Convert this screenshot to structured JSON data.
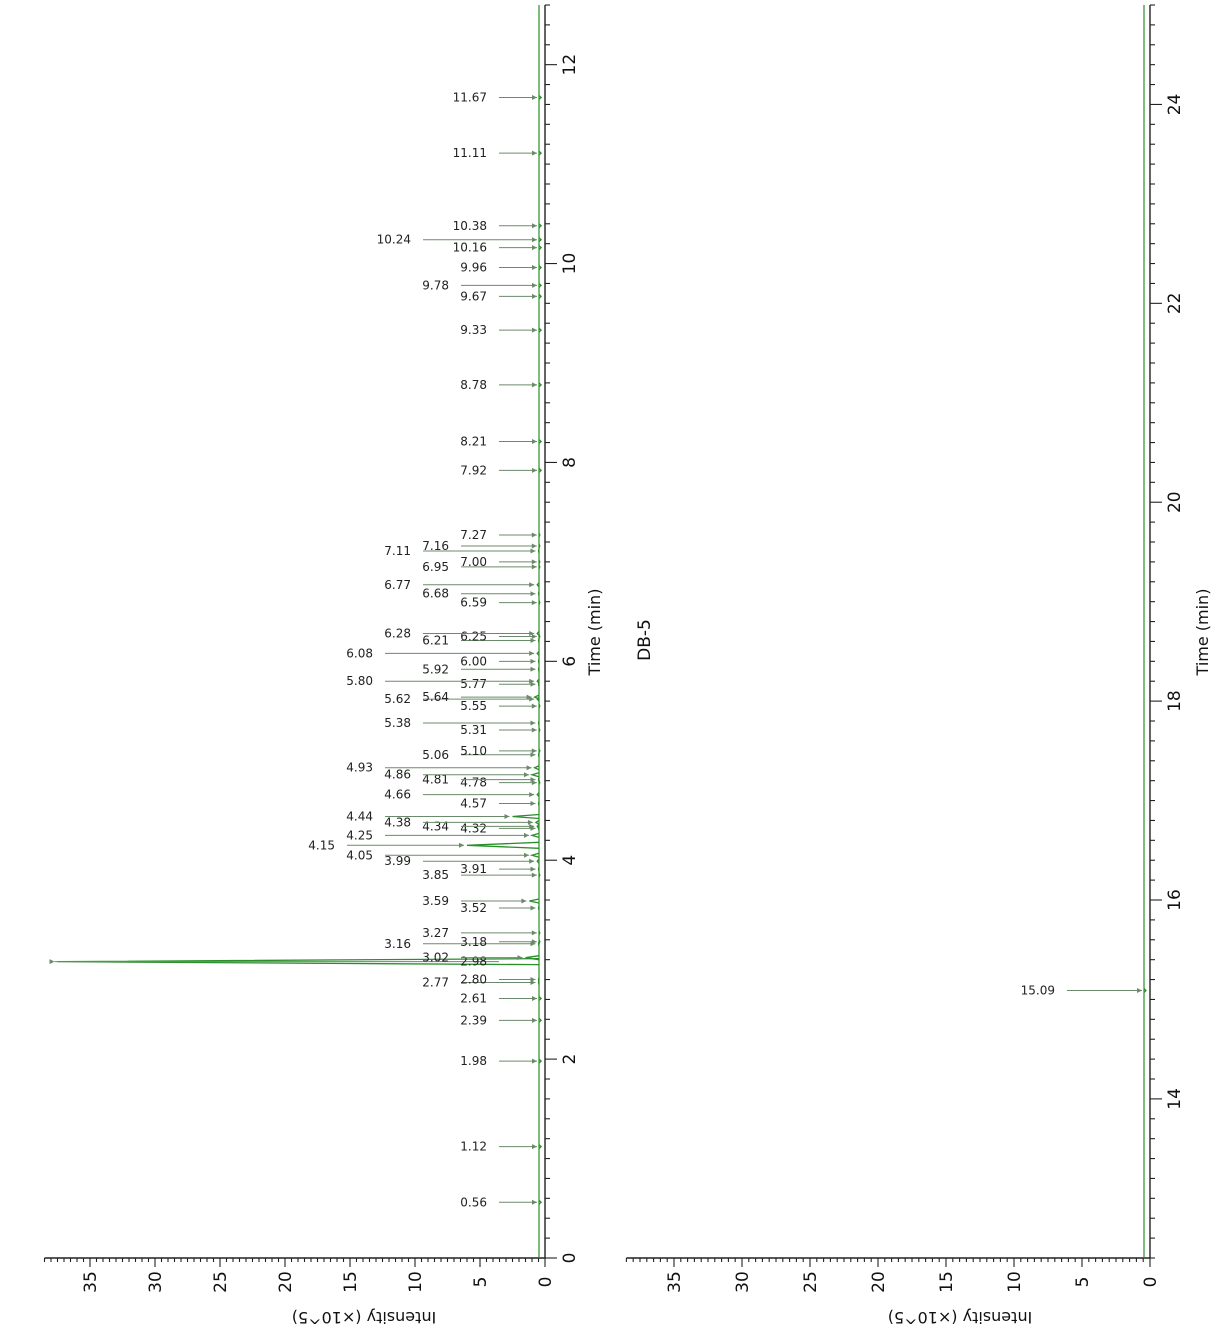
{
  "title": "DB-5",
  "colors": {
    "trace": "#2a8f2a",
    "arrow": "#6b8a6b",
    "axis": "#222222"
  },
  "chart_data": [
    {
      "type": "line",
      "name": "panel-1",
      "xlabel": "Time (min)",
      "ylabel": "Intensity (×10^5)",
      "xlim": [
        0,
        12.6
      ],
      "ylim": [
        0,
        38.5
      ],
      "x_ticks": [
        "0",
        "2",
        "4",
        "6",
        "8",
        "10",
        "12"
      ],
      "y_ticks": [
        "0",
        "5",
        "10",
        "15",
        "20",
        "25",
        "30",
        "35"
      ],
      "peaks": [
        {
          "rt": "0.56",
          "x": 0.56,
          "h": 0.3,
          "level": 0
        },
        {
          "rt": "1.12",
          "x": 1.12,
          "h": 0.3,
          "level": 0
        },
        {
          "rt": "1.98",
          "x": 1.98,
          "h": 0.3,
          "level": 0
        },
        {
          "rt": "2.39",
          "x": 2.39,
          "h": 0.3,
          "level": 0
        },
        {
          "rt": "2.61",
          "x": 2.61,
          "h": 0.3,
          "level": 0
        },
        {
          "rt": "2.77",
          "x": 2.77,
          "h": 0.5,
          "level": 1
        },
        {
          "rt": "2.80",
          "x": 2.8,
          "h": 0.5,
          "level": 0
        },
        {
          "rt": "2.98",
          "x": 2.98,
          "h": 37.5,
          "level": 0
        },
        {
          "rt": "3.02",
          "x": 3.02,
          "h": 1.5,
          "level": 1
        },
        {
          "rt": "3.16",
          "x": 3.16,
          "h": 0.5,
          "level": 2
        },
        {
          "rt": "3.18",
          "x": 3.18,
          "h": 0.4,
          "level": 0
        },
        {
          "rt": "3.27",
          "x": 3.27,
          "h": 0.4,
          "level": 1
        },
        {
          "rt": "3.52",
          "x": 3.52,
          "h": 0.5,
          "level": 0
        },
        {
          "rt": "3.59",
          "x": 3.59,
          "h": 1.2,
          "level": 1
        },
        {
          "rt": "3.85",
          "x": 3.85,
          "h": 0.4,
          "level": 1
        },
        {
          "rt": "3.91",
          "x": 3.91,
          "h": 0.5,
          "level": 0
        },
        {
          "rt": "3.99",
          "x": 3.99,
          "h": 0.6,
          "level": 2
        },
        {
          "rt": "4.05",
          "x": 4.05,
          "h": 1.0,
          "level": 3
        },
        {
          "rt": "4.15",
          "x": 4.15,
          "h": 6.0,
          "level": 4
        },
        {
          "rt": "4.25",
          "x": 4.25,
          "h": 1.0,
          "level": 3
        },
        {
          "rt": "4.32",
          "x": 4.32,
          "h": 0.5,
          "level": 0
        },
        {
          "rt": "4.34",
          "x": 4.34,
          "h": 0.6,
          "level": 1
        },
        {
          "rt": "4.38",
          "x": 4.38,
          "h": 0.7,
          "level": 2
        },
        {
          "rt": "4.44",
          "x": 4.44,
          "h": 2.5,
          "level": 3
        },
        {
          "rt": "4.57",
          "x": 4.57,
          "h": 0.5,
          "level": 0
        },
        {
          "rt": "4.66",
          "x": 4.66,
          "h": 0.6,
          "level": 2
        },
        {
          "rt": "4.78",
          "x": 4.78,
          "h": 0.4,
          "level": 0
        },
        {
          "rt": "4.81",
          "x": 4.81,
          "h": 0.5,
          "level": 1
        },
        {
          "rt": "4.86",
          "x": 4.86,
          "h": 1.0,
          "level": 2
        },
        {
          "rt": "4.93",
          "x": 4.93,
          "h": 0.8,
          "level": 3
        },
        {
          "rt": "5.06",
          "x": 5.06,
          "h": 0.5,
          "level": 1
        },
        {
          "rt": "5.10",
          "x": 5.1,
          "h": 0.4,
          "level": 0
        },
        {
          "rt": "5.31",
          "x": 5.31,
          "h": 0.4,
          "level": 0
        },
        {
          "rt": "5.38",
          "x": 5.38,
          "h": 0.5,
          "level": 2
        },
        {
          "rt": "5.55",
          "x": 5.55,
          "h": 0.4,
          "level": 0
        },
        {
          "rt": "5.62",
          "x": 5.62,
          "h": 0.6,
          "level": 2
        },
        {
          "rt": "5.64",
          "x": 5.64,
          "h": 0.8,
          "level": 1
        },
        {
          "rt": "5.77",
          "x": 5.77,
          "h": 0.5,
          "level": 0
        },
        {
          "rt": "5.80",
          "x": 5.8,
          "h": 0.6,
          "level": 3
        },
        {
          "rt": "5.92",
          "x": 5.92,
          "h": 0.5,
          "level": 1
        },
        {
          "rt": "6.00",
          "x": 6.0,
          "h": 0.5,
          "level": 0
        },
        {
          "rt": "6.08",
          "x": 6.08,
          "h": 0.6,
          "level": 3
        },
        {
          "rt": "6.21",
          "x": 6.21,
          "h": 0.5,
          "level": 1
        },
        {
          "rt": "6.25",
          "x": 6.25,
          "h": 0.4,
          "level": 0
        },
        {
          "rt": "6.28",
          "x": 6.28,
          "h": 0.6,
          "level": 2
        },
        {
          "rt": "6.59",
          "x": 6.59,
          "h": 0.4,
          "level": 0
        },
        {
          "rt": "6.68",
          "x": 6.68,
          "h": 0.5,
          "level": 1
        },
        {
          "rt": "6.77",
          "x": 6.77,
          "h": 0.6,
          "level": 2
        },
        {
          "rt": "6.95",
          "x": 6.95,
          "h": 0.4,
          "level": 1
        },
        {
          "rt": "7.00",
          "x": 7.0,
          "h": 0.4,
          "level": 0
        },
        {
          "rt": "7.11",
          "x": 7.11,
          "h": 0.5,
          "level": 2
        },
        {
          "rt": "7.16",
          "x": 7.16,
          "h": 0.4,
          "level": 1
        },
        {
          "rt": "7.27",
          "x": 7.27,
          "h": 0.4,
          "level": 0
        },
        {
          "rt": "7.92",
          "x": 7.92,
          "h": 0.3,
          "level": 0
        },
        {
          "rt": "8.21",
          "x": 8.21,
          "h": 0.3,
          "level": 0
        },
        {
          "rt": "8.78",
          "x": 8.78,
          "h": 0.3,
          "level": 0
        },
        {
          "rt": "9.33",
          "x": 9.33,
          "h": 0.3,
          "level": 0
        },
        {
          "rt": "9.67",
          "x": 9.67,
          "h": 0.3,
          "level": 0
        },
        {
          "rt": "9.78",
          "x": 9.78,
          "h": 0.3,
          "level": 1
        },
        {
          "rt": "9.96",
          "x": 9.96,
          "h": 0.3,
          "level": 0
        },
        {
          "rt": "10.16",
          "x": 10.16,
          "h": 0.3,
          "level": 0
        },
        {
          "rt": "10.24",
          "x": 10.24,
          "h": 0.3,
          "level": 2
        },
        {
          "rt": "10.38",
          "x": 10.38,
          "h": 0.3,
          "level": 0
        },
        {
          "rt": "11.11",
          "x": 11.11,
          "h": 0.3,
          "level": 0
        },
        {
          "rt": "11.67",
          "x": 11.67,
          "h": 0.3,
          "level": 0
        }
      ]
    },
    {
      "type": "line",
      "name": "panel-2",
      "xlabel": "Time (min)",
      "ylabel": "Intensity (×10^5)",
      "xlim": [
        12.4,
        25
      ],
      "ylim": [
        0,
        38.5
      ],
      "x_ticks": [
        "14",
        "16",
        "18",
        "20",
        "22",
        "24"
      ],
      "y_ticks": [
        "0",
        "5",
        "10",
        "15",
        "20",
        "25",
        "30",
        "35"
      ],
      "peaks": [
        {
          "rt": "15.09",
          "x": 15.09,
          "h": 0.3,
          "level": 0
        }
      ]
    }
  ]
}
